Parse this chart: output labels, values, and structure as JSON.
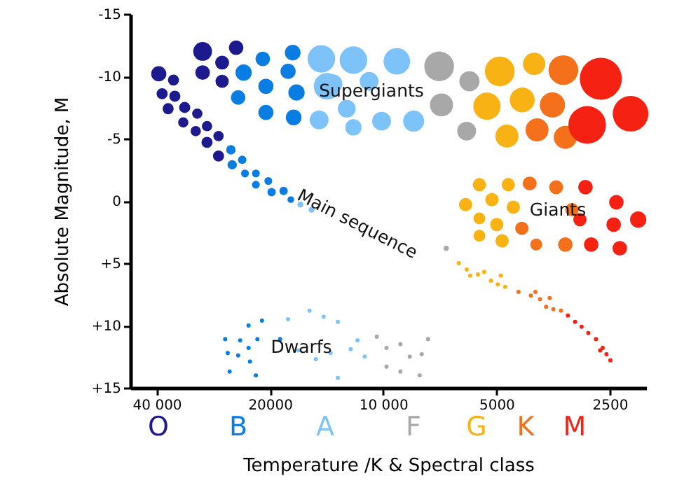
{
  "chart_data": {
    "type": "bubble",
    "xlabel": "Temperature /K & Spectral class",
    "ylabel": "Absolute Magnitude, M",
    "log": "x",
    "xlim": [
      47000,
      2000
    ],
    "ylim": [
      15,
      -15
    ],
    "xticks": [
      {
        "value": 40000,
        "label": "40 000"
      },
      {
        "value": 20000,
        "label": "20000"
      },
      {
        "value": 10000,
        "label": "10 000"
      },
      5000,
      2500
    ],
    "yticks": [
      -15,
      -10,
      -5,
      0,
      {
        "value": 5,
        "label": "+5"
      },
      {
        "value": 10,
        "label": "+10"
      },
      {
        "value": 15,
        "label": "+15"
      }
    ],
    "annotations": [
      "Supergiants",
      "Main sequence",
      "Giants",
      "Dwarfs",
      "O",
      "B",
      "A",
      "F",
      "G",
      "K",
      "M"
    ],
    "series": [
      {
        "color": "#1c1a8c",
        "x": [
          39500,
          36100,
          38700,
          35800,
          37300,
          33700,
          31200,
          34000,
          29400,
          31500,
          27400,
          29400,
          27400,
          30200,
          24600,
          26800,
          30200,
          26800
        ],
        "values": [
          -10.2,
          -9.7,
          -8.6,
          -8.4,
          -7.4,
          -7.5,
          -7.0,
          -6.3,
          -6.0,
          -5.6,
          -5.2,
          -4.7,
          -3.6,
          -12.0,
          -12.3,
          -11.1,
          -10.3,
          -9.6
        ],
        "sizes": [
          0.13,
          0.07,
          0.07,
          0.07,
          0.07,
          0.07,
          0.06,
          0.06,
          0.06,
          0.06,
          0.06,
          0.07,
          0.07,
          0.2,
          0.12,
          0.11,
          0.12,
          0.1
        ]
      },
      {
        "color": "#0a7de3",
        "x": [
          20900,
          17400,
          23500,
          17900,
          20500,
          17000,
          24300,
          20500,
          17300,
          25400,
          23700,
          25200,
          21800,
          23300,
          21800,
          20200,
          19800,
          18400,
          17600,
          26300,
          24000,
          21600,
          22800,
          21000,
          25900,
          24300,
          22600,
          25600,
          21800,
          18800,
          22800
        ],
        "values": [
          -11.4,
          -11.9,
          -10.3,
          -10.4,
          -9.2,
          -8.7,
          -8.3,
          -7.1,
          -6.7,
          -4.1,
          -3.3,
          -2.9,
          -2.2,
          -2.2,
          -1.3,
          -1.6,
          -0.7,
          -0.8,
          -0.1,
          11.1,
          11.2,
          11.1,
          10.0,
          9.6,
          12.2,
          12.4,
          12.9,
          13.7,
          14.0,
          11.1,
          11.8
        ],
        "sizes": [
          0.12,
          0.14,
          0.15,
          0.13,
          0.13,
          0.15,
          0.12,
          0.13,
          0.14,
          0.05,
          0.04,
          0.05,
          0.035,
          0.035,
          0.035,
          0.035,
          0.04,
          0.04,
          0.025,
          0.01,
          0.01,
          0.01,
          0.01,
          0.01,
          0.01,
          0.01,
          0.01,
          0.01,
          0.01,
          0.01,
          0.01
        ]
      },
      {
        "color": "#7dc3fa",
        "x": [
          14600,
          14100,
          14800,
          12500,
          12000,
          9200,
          13600,
          10900,
          10100,
          8300,
          12000,
          16600,
          15500,
          17900,
          15700,
          14400,
          13200,
          16800,
          15100,
          13800,
          12200,
          13200,
          11700,
          11200
        ],
        "values": [
          -11.4,
          -9.2,
          -6.5,
          -7.4,
          -11.3,
          -11.2,
          -9.4,
          -9.6,
          -6.4,
          -6.4,
          -5.9,
          0.3,
          0.7,
          9.5,
          8.8,
          9.3,
          9.7,
          12.0,
          12.7,
          12.2,
          11.9,
          14.2,
          11.2,
          12.5
        ],
        "sizes": [
          0.43,
          0.4,
          0.2,
          0.18,
          0.43,
          0.4,
          0.2,
          0.2,
          0.2,
          0.25,
          0.15,
          0.02,
          0.02,
          0.01,
          0.01,
          0.01,
          0.01,
          0.01,
          0.01,
          0.01,
          0.01,
          0.01,
          0.01,
          0.01
        ]
      },
      {
        "color": "#a8a8a8",
        "x": [
          7100,
          5900,
          7000,
          6000,
          6800,
          10400,
          9800,
          9000,
          8500,
          7900,
          9800,
          9000,
          8000,
          7600
        ],
        "values": [
          -10.8,
          -9.6,
          -7.7,
          -5.6,
          3.8,
          10.9,
          11.8,
          11.5,
          12.5,
          12.3,
          13.3,
          13.7,
          14.0,
          11.1
        ],
        "sizes": [
          0.5,
          0.23,
          0.3,
          0.2,
          0.015,
          0.01,
          0.01,
          0.01,
          0.01,
          0.01,
          0.01,
          0.01,
          0.01,
          0.01
        ]
      },
      {
        "color": "#f9b214",
        "x": [
          4900,
          3970,
          5300,
          4270,
          4690,
          5550,
          4650,
          6040,
          5140,
          5550,
          4990,
          5550,
          4830,
          4510,
          6300,
          6000,
          5600,
          5390,
          5170,
          4960,
          4740,
          5870,
          4870
        ],
        "values": [
          -10.4,
          -11.0,
          -7.6,
          -8.1,
          -5.2,
          -1.3,
          -1.3,
          0.3,
          -0.1,
          1.4,
          1.9,
          2.8,
          3.2,
          0.5,
          5.0,
          5.5,
          5.9,
          5.7,
          6.4,
          6.7,
          6.9,
          6.0,
          6.0
        ],
        "sizes": [
          0.5,
          0.28,
          0.42,
          0.35,
          0.3,
          0.1,
          0.1,
          0.1,
          0.1,
          0.08,
          0.1,
          0.08,
          0.1,
          0.1,
          0.01,
          0.01,
          0.01,
          0.01,
          0.01,
          0.01,
          0.01,
          0.01,
          0.01
        ]
      },
      {
        "color": "#f5701a",
        "x": [
          3320,
          3550,
          3900,
          3280,
          4080,
          3470,
          4280,
          3920,
          3280,
          3150,
          4370,
          4050,
          3830,
          3690,
          3530,
          3370,
          3940,
          3610
        ],
        "values": [
          -10.5,
          -7.7,
          -5.7,
          -5.1,
          -1.4,
          -1.1,
          2.2,
          3.5,
          3.5,
          0.7,
          7.3,
          7.6,
          7.9,
          8.5,
          8.7,
          8.8,
          7.3,
          7.8
        ],
        "sizes": [
          0.5,
          0.36,
          0.3,
          0.3,
          0.11,
          0.11,
          0.1,
          0.08,
          0.12,
          0.1,
          0.01,
          0.01,
          0.01,
          0.01,
          0.01,
          0.01,
          0.01,
          0.01
        ]
      },
      {
        "color": "#f52112",
        "x": [
          2640,
          2870,
          2200,
          2900,
          2400,
          2100,
          2440,
          2800,
          2350,
          3000,
          3230,
          3090,
          2970,
          2850,
          2720,
          2610,
          2550,
          2490,
          2650
        ],
        "values": [
          -9.8,
          -6.1,
          -7.0,
          -1.1,
          0.1,
          1.5,
          1.9,
          3.5,
          3.8,
          1.5,
          9.2,
          9.7,
          10.1,
          10.6,
          11.1,
          11.8,
          12.3,
          12.8,
          12.0
        ],
        "sizes": [
          1,
          0.8,
          0.72,
          0.12,
          0.12,
          0.15,
          0.12,
          0.12,
          0.12,
          0.1,
          0.01,
          0.01,
          0.01,
          0.01,
          0.01,
          0.01,
          0.01,
          0.01,
          0.01
        ]
      }
    ]
  }
}
